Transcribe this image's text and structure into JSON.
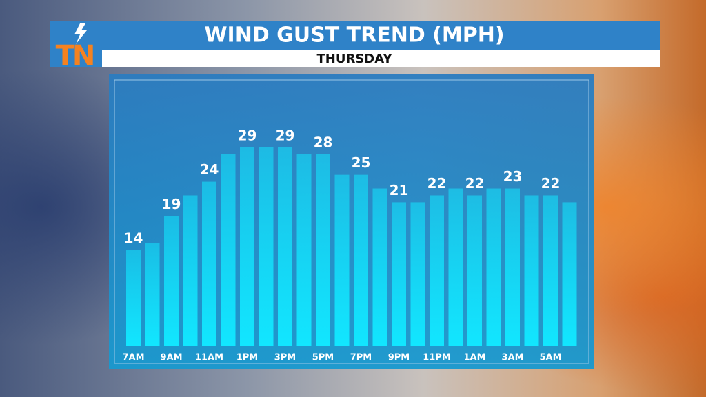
{
  "logo": "TN",
  "chart_data": {
    "type": "bar",
    "title": "WIND GUST TREND (MPH)",
    "subtitle": "THURSDAY",
    "categories": [
      "7AM",
      null,
      "9AM",
      null,
      "11AM",
      null,
      "1PM",
      null,
      "3PM",
      null,
      "5PM",
      null,
      "7PM",
      null,
      "9PM",
      null,
      "11PM",
      null,
      "1AM",
      null,
      "3AM",
      null,
      "5AM",
      null
    ],
    "values": [
      14,
      15,
      19,
      22,
      24,
      28,
      29,
      29,
      29,
      28,
      28,
      25,
      25,
      23,
      21,
      21,
      22,
      23,
      22,
      23,
      23,
      22,
      22,
      21
    ],
    "color": "#12e6ff",
    "ylim": [
      0,
      30
    ]
  }
}
